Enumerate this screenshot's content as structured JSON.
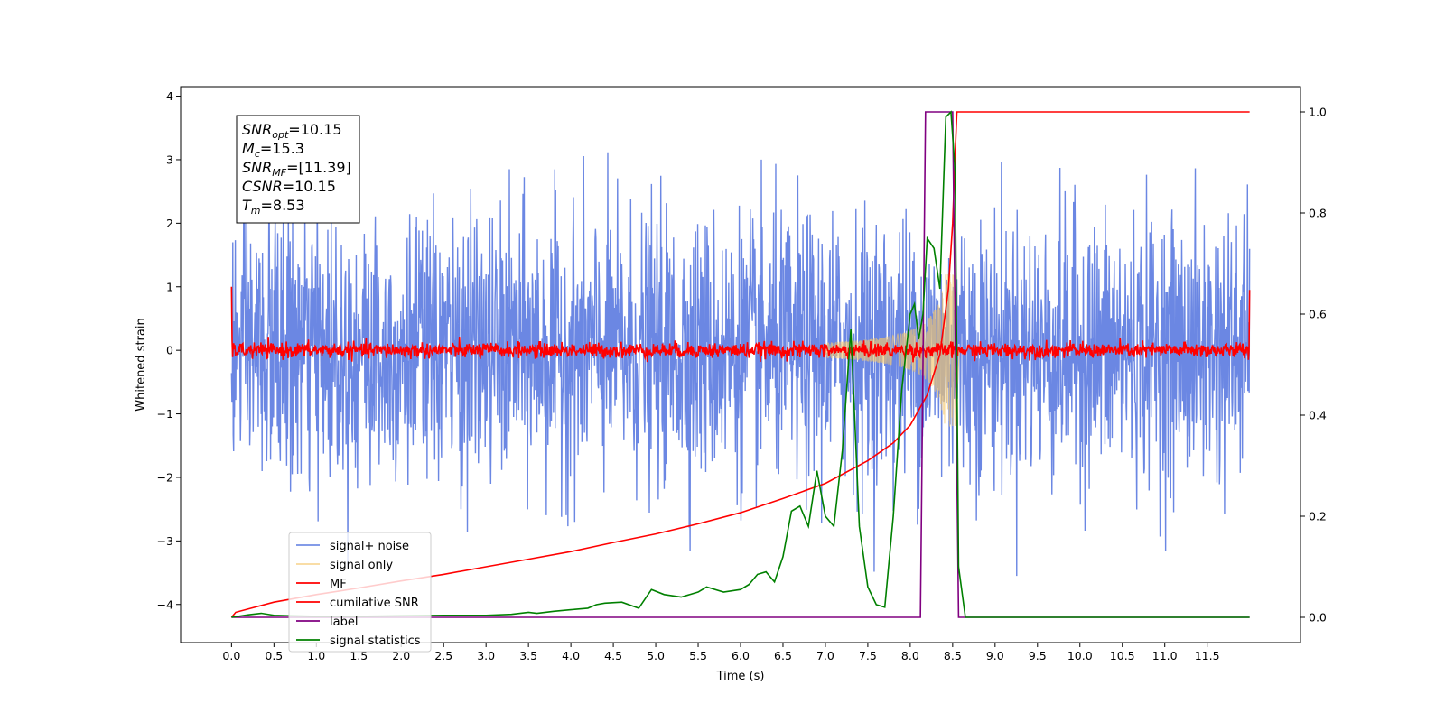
{
  "chart_data": {
    "type": "line",
    "xlabel": "Time (s)",
    "ylabel": "Whitened strain",
    "xlim": [
      -0.6,
      12.6
    ],
    "ylim": [
      -4.6,
      4.15
    ],
    "y2lim": [
      -0.05,
      1.05
    ],
    "x_ticks": [
      0.0,
      0.5,
      1.0,
      1.5,
      2.0,
      2.5,
      3.0,
      3.5,
      4.0,
      4.5,
      5.0,
      5.5,
      6.0,
      6.5,
      7.0,
      7.5,
      8.0,
      8.5,
      9.0,
      9.5,
      10.0,
      10.5,
      11.0,
      11.5
    ],
    "x_tick_labels": [
      "0.0",
      "0.5",
      "1.0",
      "1.5",
      "2.0",
      "2.5",
      "3.0",
      "3.5",
      "4.0",
      "4.5",
      "5.0",
      "5.5",
      "6.0",
      "6.5",
      "7.0",
      "7.5",
      "8.0",
      "8.5",
      "9.0",
      "9.5",
      "10.0",
      "10.5",
      "11.0",
      "11.5"
    ],
    "y_ticks": [
      -4,
      -3,
      -2,
      -1,
      0,
      1,
      2,
      3,
      4
    ],
    "y_tick_labels": [
      "−4",
      "−3",
      "−2",
      "−1",
      "0",
      "1",
      "2",
      "3",
      "4"
    ],
    "y2_ticks": [
      0.0,
      0.2,
      0.4,
      0.6,
      0.8,
      1.0
    ],
    "y2_tick_labels": [
      "0.0",
      "0.2",
      "0.4",
      "0.6",
      "0.8",
      "1.0"
    ],
    "grid": false,
    "legend_position": "lower-left",
    "annotation": {
      "lines": [
        {
          "base": "SNR",
          "sub": "opt",
          "value": "=10.15"
        },
        {
          "base": "M",
          "sub": "c",
          "value": "=15.3"
        },
        {
          "base": "SNR",
          "sub": "MF",
          "value": "=[11.39]"
        },
        {
          "base": "CSNR",
          "sub": "",
          "value": "=10.15"
        },
        {
          "base": "T",
          "sub": "m",
          "value": "=8.53"
        }
      ]
    },
    "series": [
      {
        "name": "signal+ noise",
        "color": "#6b87e3",
        "axis": "left",
        "description_amplitude": 1.0,
        "t_end": 12.0
      },
      {
        "name": "signal only",
        "color": "#f5c86e",
        "axis": "left",
        "t_merger": 8.53
      },
      {
        "name": "MF",
        "color": "#ff0000",
        "axis": "left"
      },
      {
        "name": "cumilative SNR",
        "color": "#ff0000",
        "axis": "right",
        "x": [
          0.0,
          0.05,
          0.5,
          1.0,
          1.5,
          2.0,
          2.5,
          3.0,
          3.5,
          4.0,
          4.5,
          5.0,
          5.5,
          6.0,
          6.5,
          7.0,
          7.5,
          7.8,
          8.0,
          8.2,
          8.35,
          8.45,
          8.5,
          8.53,
          8.55,
          12.0
        ],
        "y": [
          0.0,
          0.01,
          0.03,
          0.045,
          0.058,
          0.072,
          0.085,
          0.1,
          0.115,
          0.13,
          0.148,
          0.165,
          0.185,
          0.207,
          0.235,
          0.265,
          0.31,
          0.345,
          0.38,
          0.44,
          0.52,
          0.65,
          0.78,
          0.92,
          1.0,
          1.0
        ]
      },
      {
        "name": "label",
        "color": "#800080",
        "axis": "right",
        "x": [
          0.0,
          8.12,
          8.18,
          8.5,
          8.57,
          11.0,
          12.0
        ],
        "y": [
          0.0,
          0.0,
          1.0,
          1.0,
          0.0,
          0.0,
          0.0
        ]
      },
      {
        "name": "signal statistics",
        "color": "#008000",
        "axis": "right",
        "x": [
          0.0,
          0.2,
          0.35,
          0.5,
          0.7,
          1.0,
          1.5,
          2.0,
          2.5,
          3.0,
          3.3,
          3.5,
          3.6,
          3.8,
          4.0,
          4.2,
          4.3,
          4.4,
          4.6,
          4.8,
          4.95,
          5.1,
          5.3,
          5.5,
          5.6,
          5.8,
          6.0,
          6.1,
          6.2,
          6.3,
          6.4,
          6.5,
          6.6,
          6.7,
          6.8,
          6.9,
          7.0,
          7.1,
          7.2,
          7.3,
          7.4,
          7.5,
          7.6,
          7.7,
          7.8,
          7.9,
          8.0,
          8.05,
          8.1,
          8.15,
          8.2,
          8.28,
          8.35,
          8.42,
          8.48,
          8.53,
          8.57,
          8.65,
          9.0,
          10.0,
          11.0,
          12.0
        ],
        "y": [
          0.0,
          0.005,
          0.008,
          0.004,
          0.003,
          0.002,
          0.002,
          0.003,
          0.004,
          0.004,
          0.006,
          0.01,
          0.008,
          0.012,
          0.015,
          0.018,
          0.025,
          0.028,
          0.03,
          0.018,
          0.055,
          0.045,
          0.04,
          0.05,
          0.06,
          0.05,
          0.055,
          0.065,
          0.085,
          0.09,
          0.07,
          0.12,
          0.21,
          0.22,
          0.18,
          0.29,
          0.2,
          0.18,
          0.33,
          0.57,
          0.18,
          0.06,
          0.025,
          0.02,
          0.2,
          0.45,
          0.6,
          0.62,
          0.55,
          0.6,
          0.75,
          0.73,
          0.65,
          0.99,
          1.0,
          0.88,
          0.1,
          0.0,
          0.0,
          0.0,
          0.0,
          0.0
        ]
      }
    ]
  }
}
